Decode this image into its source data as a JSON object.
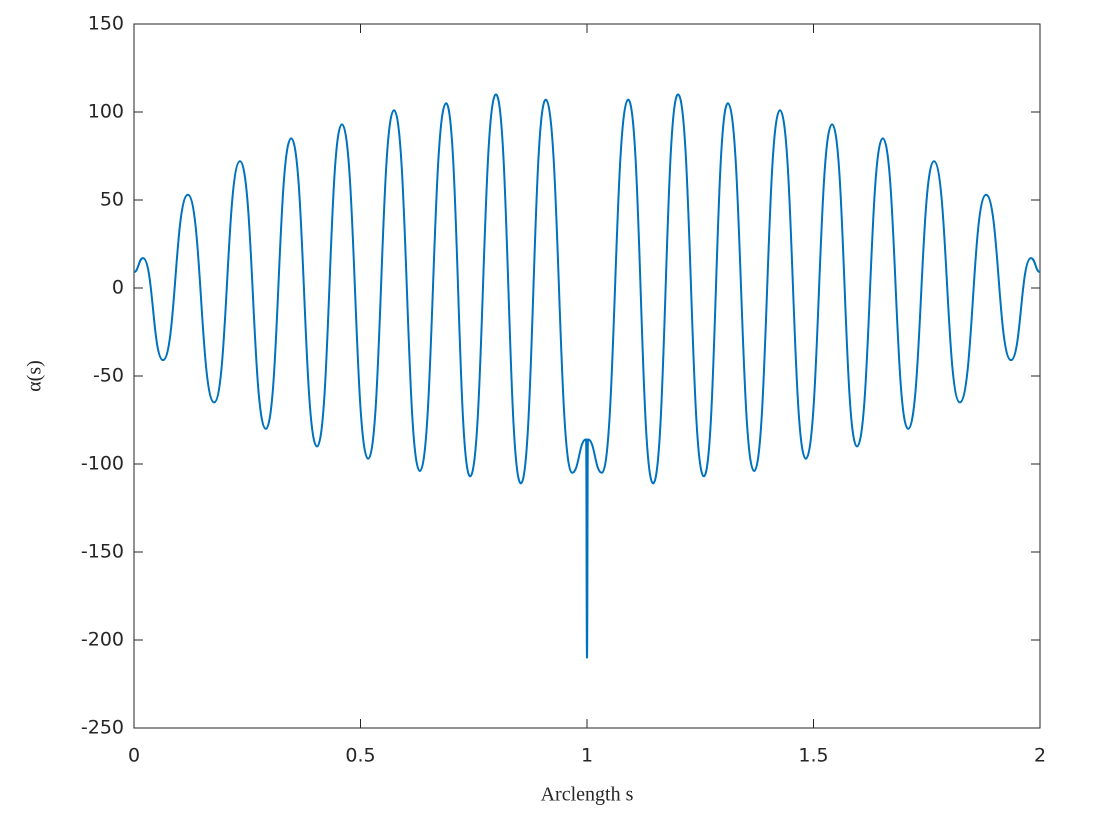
{
  "chart_data": {
    "type": "line",
    "xlabel": "Arclength s",
    "ylabel": "α(s)",
    "x": [
      0,
      0.02,
      0.064,
      0.119,
      0.177,
      0.234,
      0.291,
      0.347,
      0.404,
      0.459,
      0.517,
      0.574,
      0.631,
      0.689,
      0.742,
      0.799,
      0.854,
      0.909,
      0.967,
      0.998,
      1.0,
      1.002,
      1.033,
      1.091,
      1.146,
      1.201,
      1.258,
      1.311,
      1.369,
      1.426,
      1.483,
      1.541,
      1.596,
      1.653,
      1.709,
      1.766,
      1.823,
      1.881,
      1.936,
      1.98,
      2
    ],
    "series": [
      {
        "color": "#0072bd",
        "values": [
          9,
          17,
          -41,
          53,
          -65,
          72,
          -80,
          85,
          -90,
          93,
          -97,
          101,
          -104,
          105,
          -107,
          110,
          -111,
          107,
          -105,
          -86,
          -210,
          -86,
          -105,
          107,
          -111,
          110,
          -107,
          105,
          -104,
          101,
          -97,
          93,
          -90,
          85,
          -80,
          72,
          -65,
          53,
          -41,
          17,
          9
        ]
      }
    ],
    "xlim": [
      0,
      2
    ],
    "xticks": [
      0,
      0.5,
      1,
      1.5,
      2
    ],
    "ylim": [
      -250,
      150
    ],
    "yticks": [
      -250,
      -200,
      -150,
      -100,
      -50,
      0,
      50,
      100,
      150
    ],
    "grid": false
  }
}
